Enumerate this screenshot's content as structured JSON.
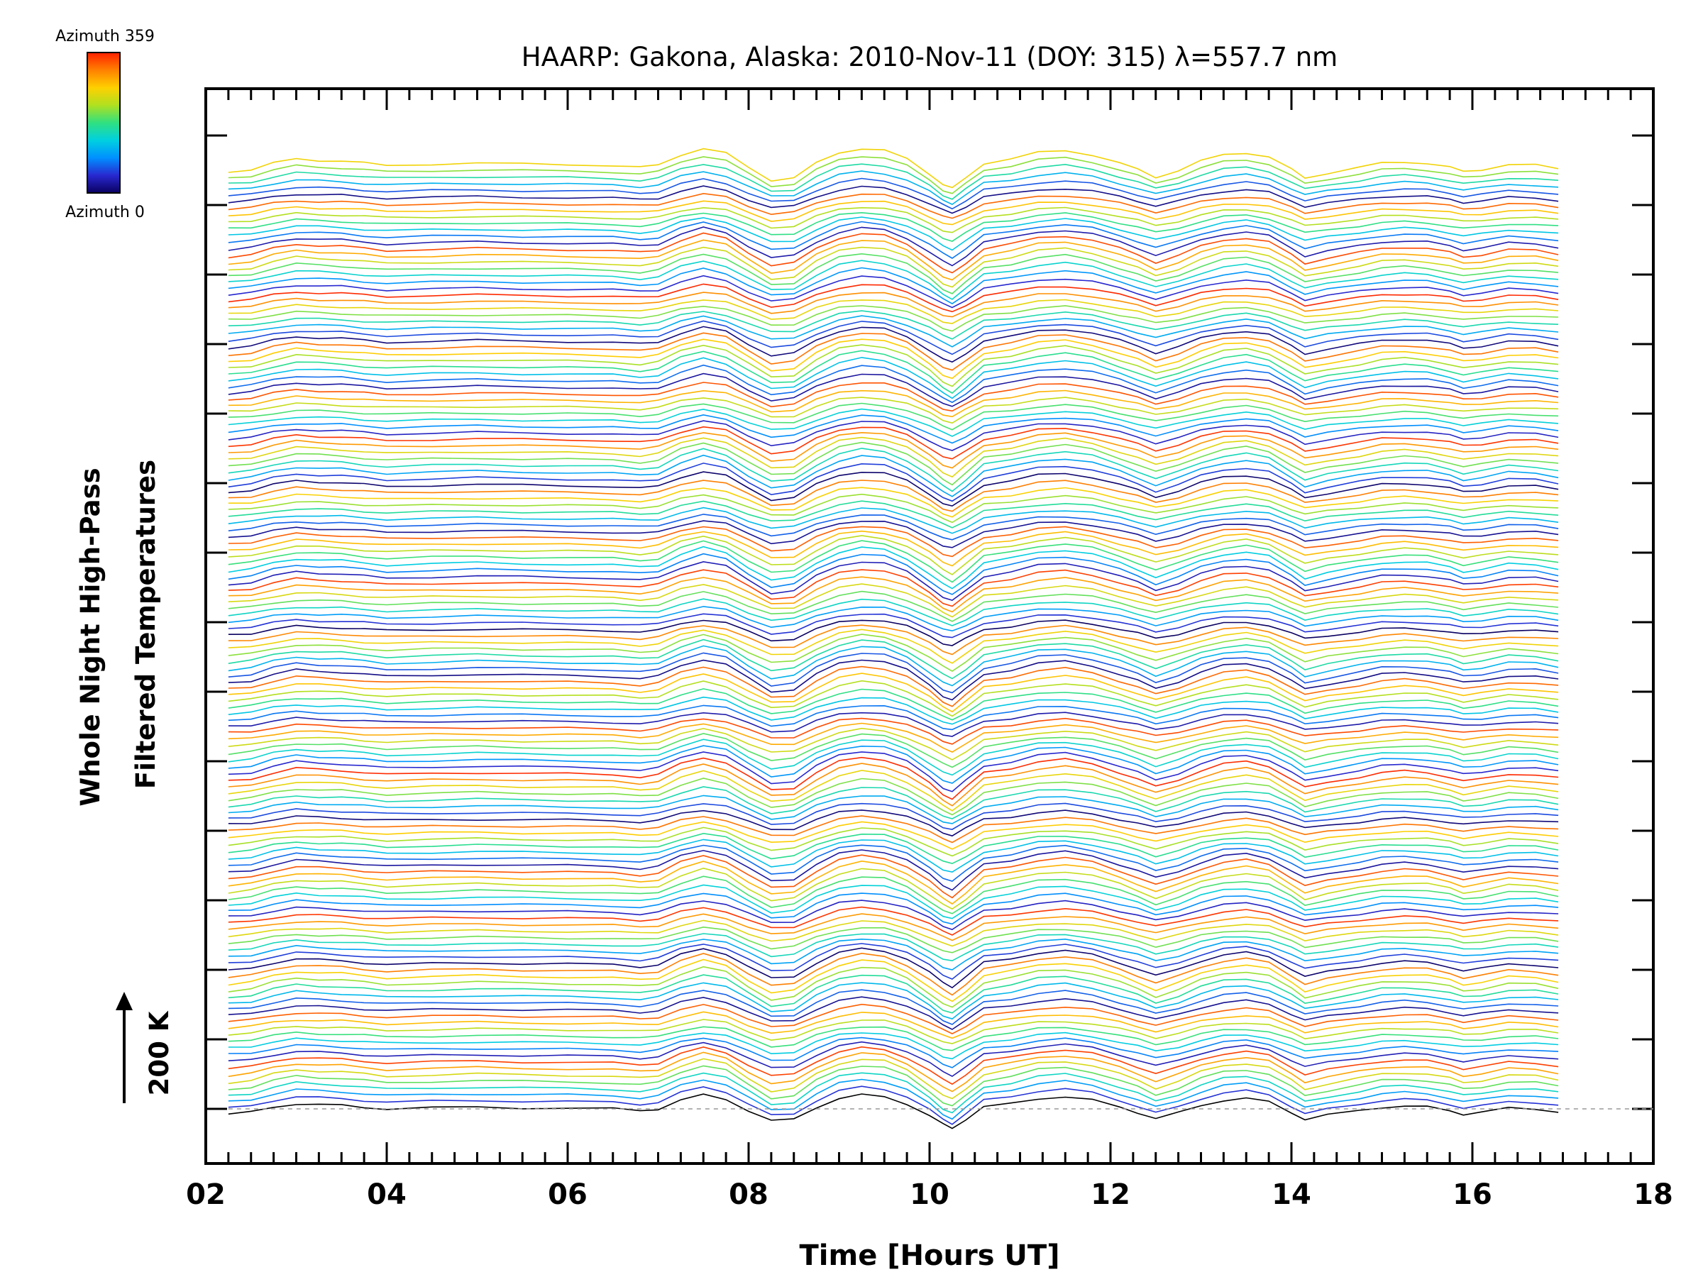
{
  "chart_data": {
    "type": "line",
    "title": "HAARP: Gakona,  Alaska: 2010-Nov-11 (DOY: 315) λ=557.7 nm",
    "xlabel": "Time [Hours UT]",
    "ylabel_line1": "Whole Night High-Pass",
    "ylabel_line2": "Filtered Temperatures",
    "scale_label": "200 K",
    "scale_value_K": 200,
    "xlim": [
      2,
      18
    ],
    "x_ticks": [
      "02",
      "04",
      "06",
      "08",
      "10",
      "12",
      "14",
      "16",
      "18"
    ],
    "x_range_data": [
      2.25,
      16.95
    ],
    "color_legend": {
      "top_label": "Azimuth 359",
      "bottom_label": "Azimuth 0",
      "colormap": "rainbow",
      "colors": [
        "#0a0060",
        "#2828d0",
        "#0090ff",
        "#00d0e0",
        "#30e080",
        "#b0e020",
        "#ffd000",
        "#ff8000",
        "#ff2000"
      ]
    },
    "series_count": 145,
    "baseline_dashed": true,
    "series_common_shape": {
      "x": [
        2.25,
        2.5,
        2.75,
        3.0,
        3.25,
        3.5,
        3.75,
        4.0,
        4.5,
        5.0,
        5.5,
        6.0,
        6.5,
        6.8,
        7.0,
        7.25,
        7.5,
        7.75,
        8.0,
        8.25,
        8.5,
        8.75,
        9.0,
        9.25,
        9.5,
        9.75,
        10.0,
        10.15,
        10.25,
        10.4,
        10.6,
        10.9,
        11.2,
        11.5,
        11.8,
        12.1,
        12.3,
        12.5,
        12.75,
        13.0,
        13.25,
        13.5,
        13.75,
        14.0,
        14.15,
        14.4,
        14.75,
        15.0,
        15.25,
        15.5,
        15.75,
        15.9,
        16.1,
        16.4,
        16.7,
        16.95
      ],
      "y_K": [
        -15,
        -10,
        5,
        15,
        12,
        10,
        5,
        0,
        3,
        5,
        3,
        2,
        0,
        -5,
        0,
        25,
        40,
        28,
        -5,
        -35,
        -30,
        5,
        30,
        40,
        35,
        15,
        -20,
        -45,
        -55,
        -30,
        5,
        15,
        30,
        35,
        25,
        5,
        -10,
        -28,
        -12,
        10,
        25,
        30,
        20,
        -10,
        -30,
        -18,
        -5,
        5,
        8,
        5,
        -5,
        -15,
        -10,
        2,
        0,
        -8
      ]
    }
  }
}
